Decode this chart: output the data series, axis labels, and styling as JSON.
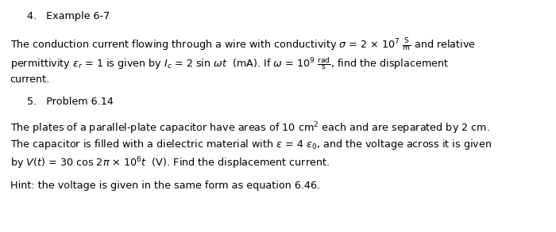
{
  "background_color": "#ffffff",
  "heading1": "4.   Example 6-7",
  "heading2": "5.   Problem 6.14",
  "hint": "Hint: the voltage is given in the same form as equation 6.46.",
  "line1": "The conduction current flowing through a wire with conductivity $\\sigma$ = 2 $\\times$ 10$^7$ $\\frac{\\mathrm{S}}{\\mathrm{m}}$ and relative",
  "line2": "permittivity $\\varepsilon_r$ = 1 is given by $I_c$ = 2 sin $\\omega t$  (mA). If $\\omega$ = 10$^9$ $\\frac{\\mathrm{rad}}{\\mathrm{s}}$, find the displacement",
  "line3": "current.",
  "line4": "The plates of a parallel-plate capacitor have areas of 10 cm$^2$ each and are separated by 2 cm.",
  "line5": "The capacitor is filled with a dielectric material with $\\epsilon$ = 4 $\\varepsilon_0$, and the voltage across it is given",
  "line6": "by $V(t)$ = 30 cos 2$\\pi$ $\\times$ 10$^6$$t$  (V). Find the displacement current.",
  "fs": 9.2,
  "fs_heading": 9.2,
  "lh": 0.112
}
